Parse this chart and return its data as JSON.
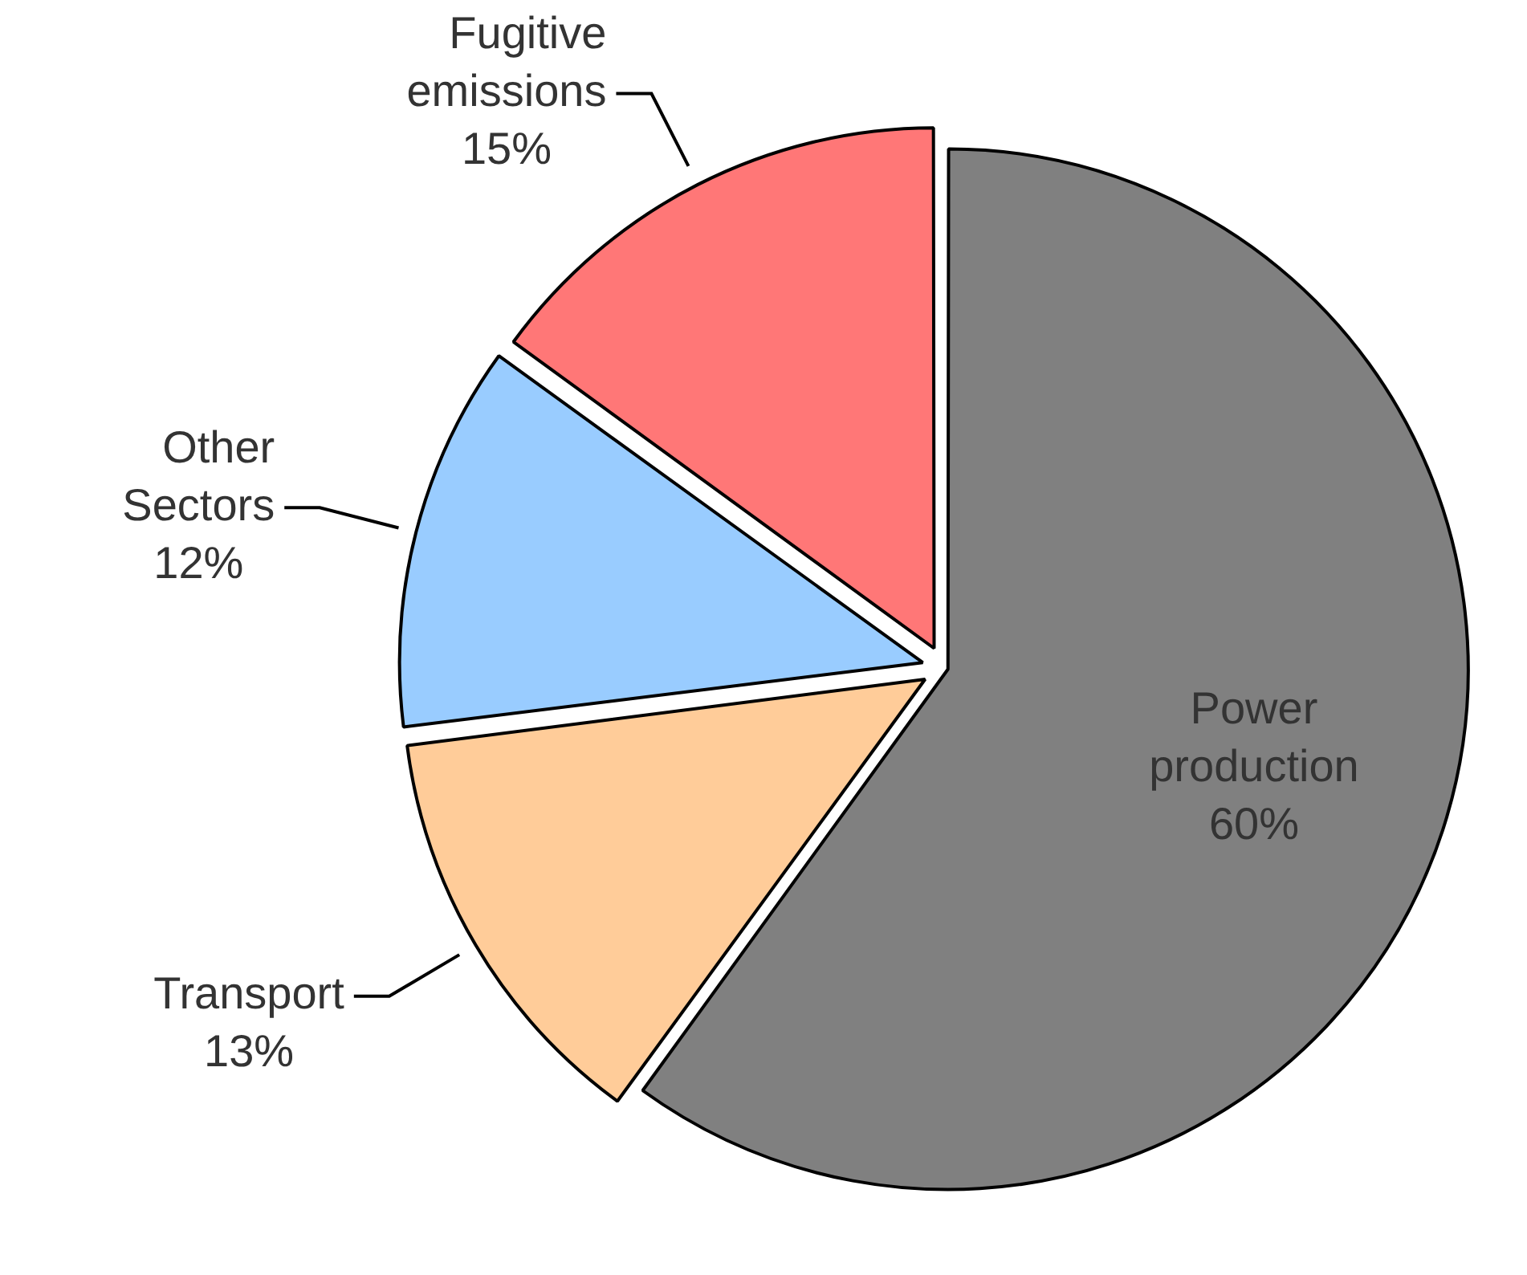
{
  "chart_data": {
    "type": "pie",
    "categories": [
      "Power production",
      "Transport",
      "Other Sectors",
      "Fugitive emissions"
    ],
    "values": [
      60,
      13,
      12,
      15
    ],
    "colors": [
      "#808080",
      "#ffcc99",
      "#99ccff",
      "#ff7777"
    ],
    "value_labels": [
      "60%",
      "13%",
      "12%",
      "15%"
    ],
    "legend": false
  }
}
